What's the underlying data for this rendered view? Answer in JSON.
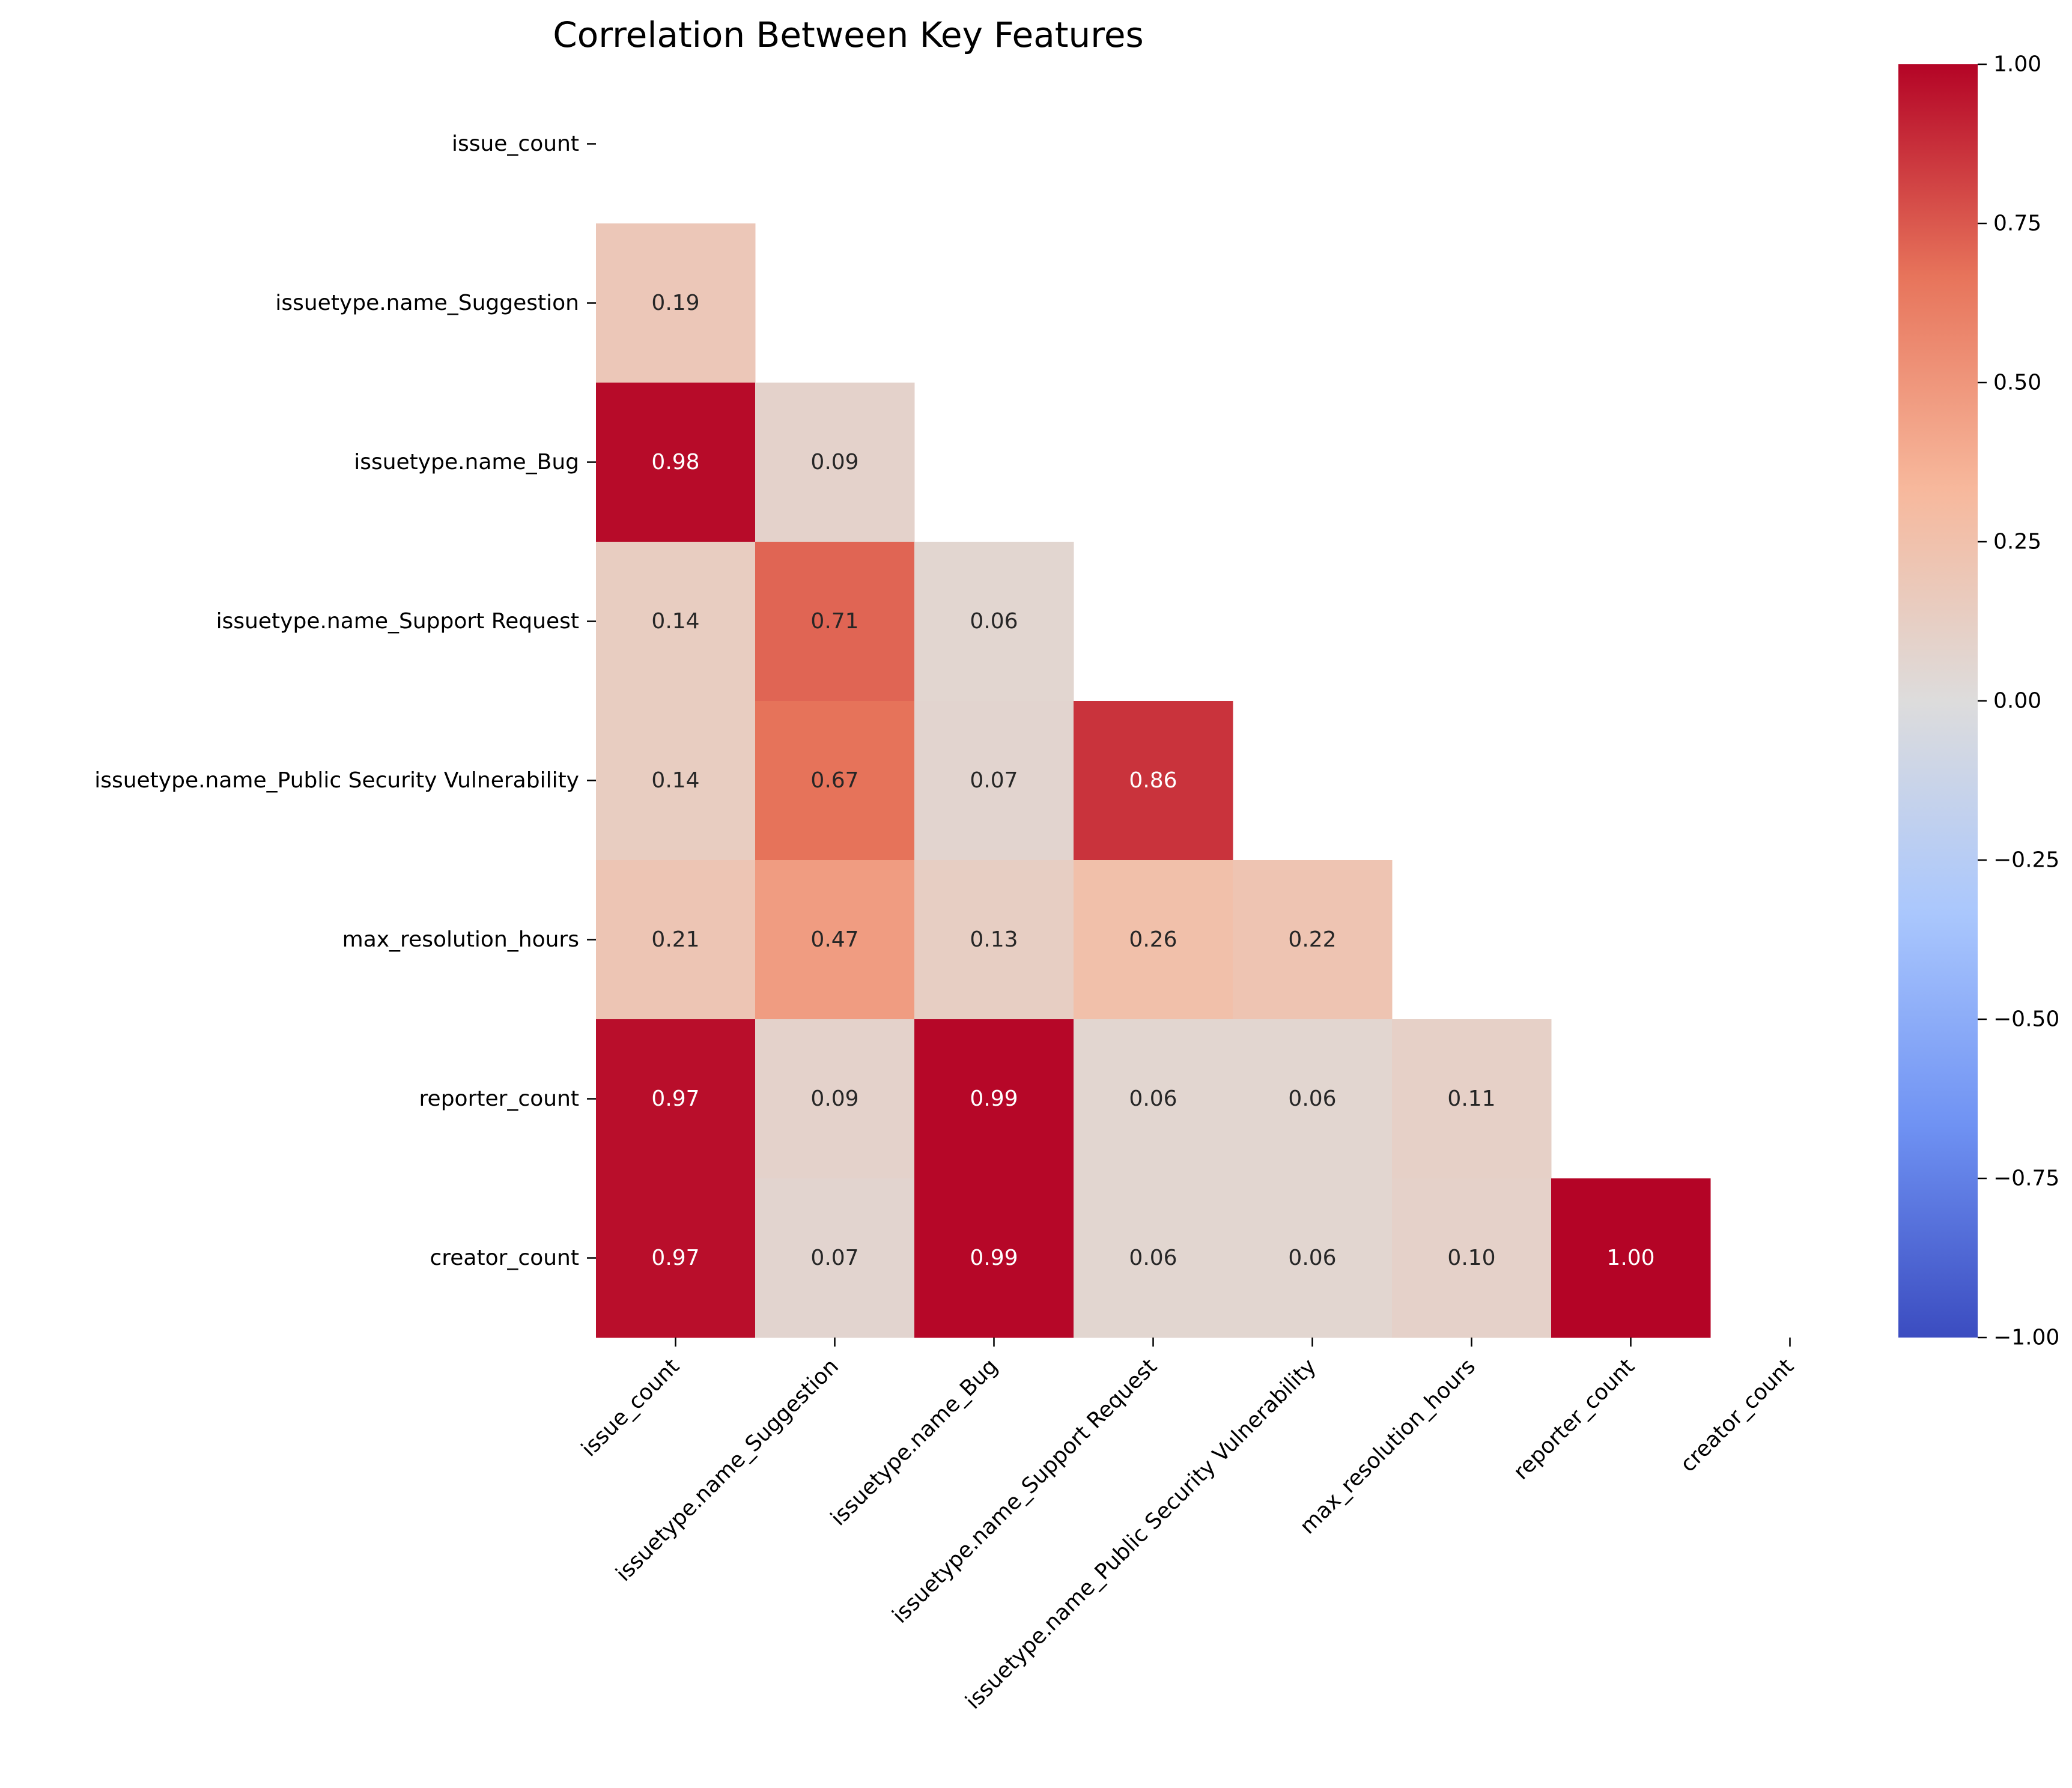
{
  "chart_data": {
    "type": "heatmap",
    "title": "Correlation Between Key Features",
    "xlabel": "",
    "ylabel": "",
    "variables": [
      "issue_count",
      "issuetype.name_Suggestion",
      "issuetype.name_Bug",
      "issuetype.name_Support Request",
      "issuetype.name_Public Security Vulnerability",
      "max_resolution_hours",
      "reporter_count",
      "creator_count"
    ],
    "mask": "upper-triangle-and-diagonal",
    "matrix": [
      [
        null,
        null,
        null,
        null,
        null,
        null,
        null,
        null
      ],
      [
        0.19,
        null,
        null,
        null,
        null,
        null,
        null,
        null
      ],
      [
        0.98,
        0.09,
        null,
        null,
        null,
        null,
        null,
        null
      ],
      [
        0.14,
        0.71,
        0.06,
        null,
        null,
        null,
        null,
        null
      ],
      [
        0.14,
        0.67,
        0.07,
        0.86,
        null,
        null,
        null,
        null
      ],
      [
        0.21,
        0.47,
        0.13,
        0.26,
        0.22,
        null,
        null,
        null
      ],
      [
        0.97,
        0.09,
        0.99,
        0.06,
        0.06,
        0.11,
        null,
        null
      ],
      [
        0.97,
        0.07,
        0.99,
        0.06,
        0.06,
        0.1,
        1.0,
        null
      ]
    ],
    "annotations": [
      [
        null,
        null,
        null,
        null,
        null,
        null,
        null,
        null
      ],
      [
        "0.19",
        null,
        null,
        null,
        null,
        null,
        null,
        null
      ],
      [
        "0.98",
        "0.09",
        null,
        null,
        null,
        null,
        null,
        null
      ],
      [
        "0.14",
        "0.71",
        "0.06",
        null,
        null,
        null,
        null,
        null
      ],
      [
        "0.14",
        "0.67",
        "0.07",
        "0.86",
        null,
        null,
        null,
        null
      ],
      [
        "0.21",
        "0.47",
        "0.13",
        "0.26",
        "0.22",
        null,
        null,
        null
      ],
      [
        "0.97",
        "0.09",
        "0.99",
        "0.06",
        "0.06",
        "0.11",
        null,
        null
      ],
      [
        "0.97",
        "0.07",
        "0.99",
        "0.06",
        "0.06",
        "0.10",
        "1.00",
        null
      ]
    ],
    "colormap": "coolwarm",
    "colormap_stops": [
      "#3b4cc0",
      "#6f92f3",
      "#aac7fd",
      "#dddcdc",
      "#f7b89c",
      "#e7745b",
      "#b40426"
    ],
    "vmin": -1.0,
    "vmax": 1.0,
    "colorbar": {
      "ticks": [
        1.0,
        0.75,
        0.5,
        0.25,
        0.0,
        -0.25,
        -0.5,
        -0.75,
        -1.0
      ],
      "tick_labels": [
        "1.00",
        "0.75",
        "0.50",
        "0.25",
        "0.00",
        "−0.25",
        "−0.50",
        "−0.75",
        "−1.00"
      ]
    },
    "grid": false,
    "legend": "colorbar-right"
  }
}
